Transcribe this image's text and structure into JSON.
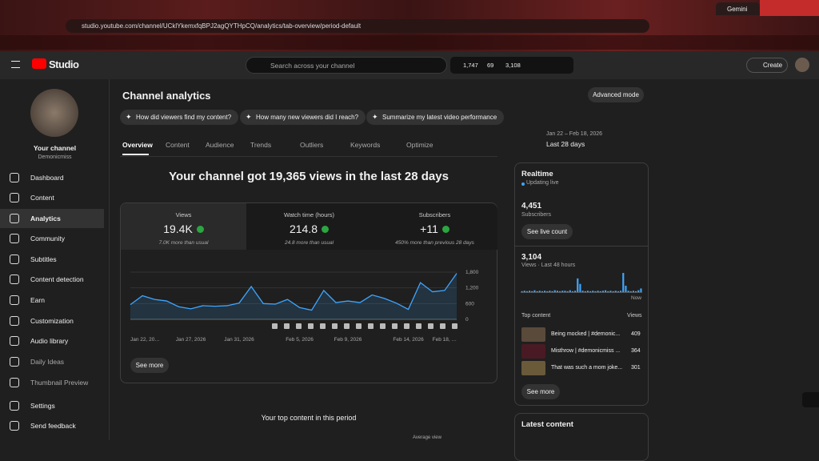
{
  "browser": {
    "tab": "Gemini",
    "url": "studio.youtube.com/channel/UCklYkemxfqBPJ2agQYTHpCQ/analytics/tab-overview/period-default"
  },
  "header": {
    "logo": "Studio",
    "search": "Search across your channel",
    "stats": [
      "1,747",
      "69",
      "3,108"
    ],
    "create": "Create"
  },
  "sidebar": {
    "channel_label": "Your channel",
    "channel_name": "Demonicmiss",
    "nav": [
      "Dashboard",
      "Content",
      "Analytics",
      "Community",
      "Subtitles",
      "Content detection",
      "Earn",
      "Customization",
      "Audio library",
      "Daily Ideas",
      "Thumbnail Preview",
      "Settings",
      "Send feedback"
    ]
  },
  "analytics": {
    "title": "Channel analytics",
    "advanced": "Advanced mode",
    "suggestions": [
      "How did viewers find my content?",
      "How many new viewers did I reach?",
      "Summarize my latest video performance"
    ],
    "tabs": [
      "Overview",
      "Content",
      "Audience",
      "Trends",
      "Outliers",
      "Keywords",
      "Optimize"
    ],
    "period_range": "Jan 22 – Feb 18, 2026",
    "period": "Last 28 days",
    "headline": "Your channel got 19,365 views in the last 28 days",
    "metrics": [
      {
        "label": "Views",
        "value": "19.4K",
        "note": "7.0K more than usual"
      },
      {
        "label": "Watch time (hours)",
        "value": "214.8",
        "note": "24.8 more than usual"
      },
      {
        "label": "Subscribers",
        "value": "+11",
        "note": "450% more than previous 28 days"
      }
    ],
    "see_more": "See more",
    "top_content_title": "Your top content in this period",
    "average_view": "Average view"
  },
  "views_chart": {
    "type": "line",
    "categories": [
      "Jan 22, 20…",
      null,
      null,
      null,
      null,
      "Jan 27, 2026",
      null,
      null,
      null,
      "Jan 31, 2026",
      null,
      null,
      null,
      null,
      "Feb 5, 2026",
      null,
      null,
      null,
      "Feb 9, 2026",
      null,
      null,
      null,
      null,
      "Feb 14, 2026",
      null,
      null,
      null,
      "Feb 18, …"
    ],
    "values": [
      560,
      900,
      760,
      700,
      480,
      400,
      520,
      500,
      520,
      620,
      1250,
      600,
      580,
      760,
      450,
      350,
      1100,
      640,
      700,
      640,
      930,
      800,
      620,
      380,
      1400,
      1050,
      1100,
      1750
    ],
    "ylim": [
      0,
      1800
    ],
    "yticks": [
      0,
      600,
      {
        "value": 1200,
        "label": "1,200"
      },
      {
        "value": 1800,
        "label": "1,800"
      }
    ],
    "color": "#3ea6ff"
  },
  "realtime": {
    "title": "Realtime",
    "status": "Updating live",
    "subscribers": "4,451",
    "subscribers_label": "Subscribers",
    "live_button": "See live count",
    "views": "3,104",
    "views_label": "Views · Last 48 hours",
    "now": "Now",
    "top_content": "Top content",
    "views_header": "Views",
    "items": [
      {
        "title": "Being mocked | #demonic...",
        "views": "409"
      },
      {
        "title": "Misthrow | #demonicmiss ...",
        "views": "364"
      },
      {
        "title": "That was such a mom joke...",
        "views": "301"
      }
    ],
    "see_more": "See more",
    "latest": "Latest content",
    "chart": {
      "type": "bar",
      "color": "#3ea6ff",
      "values": [
        2,
        3,
        2,
        3,
        2,
        4,
        2,
        3,
        2,
        3,
        2,
        3,
        2,
        4,
        3,
        2,
        3,
        3,
        2,
        4,
        2,
        3,
        30,
        18,
        3,
        2,
        3,
        2,
        3,
        2,
        3,
        2,
        3,
        4,
        2,
        3,
        2,
        3,
        2,
        3,
        42,
        14,
        3,
        2,
        3,
        2,
        4,
        8
      ]
    }
  }
}
